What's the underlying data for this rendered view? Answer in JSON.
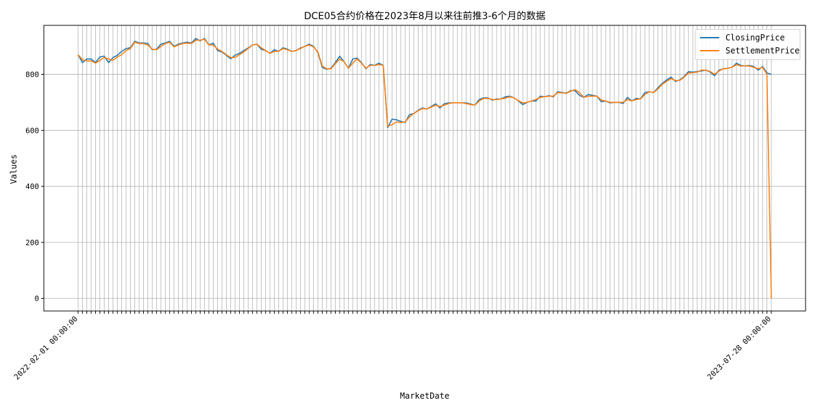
{
  "chart_data": {
    "type": "line",
    "title": "DCE05合约价格在2023年8月以来往前推3-6个月的数据",
    "xlabel": "MarketDate",
    "ylabel": "Values",
    "ylim": [
      -45,
      975
    ],
    "yticks": [
      0,
      200,
      400,
      600,
      800
    ],
    "grid": true,
    "legend_position": "top-right",
    "x_start_label": "2022-02-01 00:00:00",
    "x_end_label": "2023-07-28 00:00:00",
    "series": [
      {
        "name": "ClosingPrice",
        "color": "#1f77b4",
        "values": [
          870,
          842,
          855,
          855,
          842,
          862,
          865,
          842,
          860,
          868,
          882,
          892,
          895,
          918,
          912,
          912,
          910,
          888,
          890,
          908,
          912,
          918,
          900,
          908,
          912,
          915,
          912,
          928,
          920,
          928,
          905,
          912,
          885,
          880,
          868,
          856,
          868,
          875,
          885,
          894,
          905,
          908,
          890,
          885,
          875,
          888,
          882,
          895,
          890,
          882,
          885,
          894,
          900,
          908,
          900,
          878,
          825,
          818,
          822,
          842,
          865,
          845,
          822,
          855,
          858,
          842,
          820,
          835,
          832,
          840,
          832,
          610,
          640,
          638,
          632,
          628,
          656,
          660,
          672,
          680,
          676,
          685,
          695,
          680,
          695,
          698,
          698,
          698,
          698,
          698,
          694,
          690,
          710,
          716,
          716,
          708,
          712,
          712,
          720,
          722,
          716,
          705,
          692,
          700,
          705,
          705,
          722,
          720,
          724,
          720,
          738,
          735,
          733,
          742,
          742,
          725,
          718,
          728,
          725,
          722,
          702,
          705,
          698,
          700,
          700,
          696,
          718,
          705,
          714,
          712,
          735,
          738,
          735,
          752,
          768,
          780,
          790,
          775,
          780,
          792,
          810,
          808,
          810,
          812,
          815,
          808,
          795,
          815,
          820,
          822,
          825,
          840,
          832,
          830,
          832,
          828,
          815,
          828,
          805,
          800
        ],
        "last_value": 800
      },
      {
        "name": "SettlementPrice",
        "color": "#ff7f0e",
        "values": [
          870,
          852,
          848,
          848,
          840,
          850,
          860,
          855,
          850,
          862,
          870,
          885,
          892,
          915,
          910,
          910,
          905,
          890,
          888,
          900,
          910,
          915,
          898,
          905,
          910,
          912,
          910,
          922,
          922,
          925,
          905,
          905,
          890,
          882,
          870,
          860,
          860,
          870,
          880,
          892,
          905,
          908,
          895,
          885,
          875,
          882,
          882,
          892,
          888,
          882,
          885,
          892,
          900,
          905,
          898,
          880,
          830,
          820,
          820,
          838,
          855,
          845,
          822,
          840,
          855,
          840,
          822,
          832,
          832,
          835,
          832,
          615,
          620,
          630,
          628,
          630,
          648,
          660,
          670,
          678,
          676,
          683,
          690,
          685,
          690,
          696,
          698,
          698,
          698,
          696,
          692,
          690,
          705,
          714,
          714,
          710,
          710,
          712,
          715,
          720,
          716,
          706,
          698,
          700,
          705,
          710,
          718,
          720,
          722,
          722,
          735,
          734,
          732,
          740,
          745,
          735,
          718,
          722,
          722,
          722,
          708,
          705,
          700,
          700,
          700,
          700,
          710,
          705,
          710,
          712,
          728,
          738,
          735,
          748,
          765,
          775,
          785,
          778,
          778,
          790,
          805,
          806,
          808,
          815,
          815,
          810,
          800,
          812,
          820,
          822,
          825,
          835,
          830,
          830,
          830,
          825,
          820,
          825,
          800,
          0
        ],
        "last_value": 0
      }
    ]
  }
}
